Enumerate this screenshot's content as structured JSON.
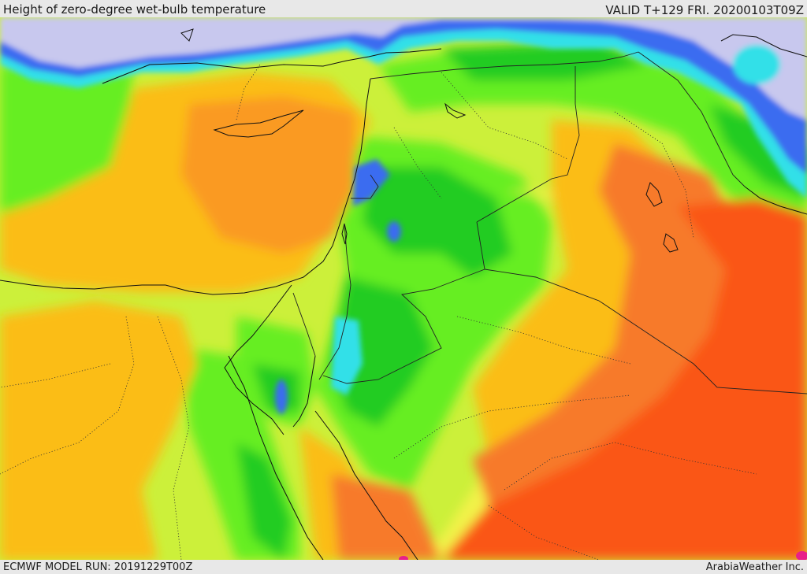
{
  "header": {
    "title": "Height of zero-degree wet-bulb temperature",
    "valid": "VALID T+129 FRI. 20200103T09Z"
  },
  "footer": {
    "model_run": "ECMWF MODEL RUN: 20191229T00Z",
    "credit": "ArabiaWeather Inc."
  },
  "map": {
    "parameter": "zero-degree wet-bulb height",
    "palette": {
      "lowest": "#c8c8ee",
      "low_cyan": "#33e0e8",
      "low_blue": "#3a6cf0",
      "green_dark": "#22cc22",
      "green": "#66ee22",
      "yellow_green": "#ccf03a",
      "yellow": "#f2f24a",
      "orange_light": "#fbbd18",
      "orange": "#fa9a20",
      "orange_dark": "#f77a2c",
      "red_orange": "#fa5618",
      "magenta": "#e8208a"
    }
  }
}
